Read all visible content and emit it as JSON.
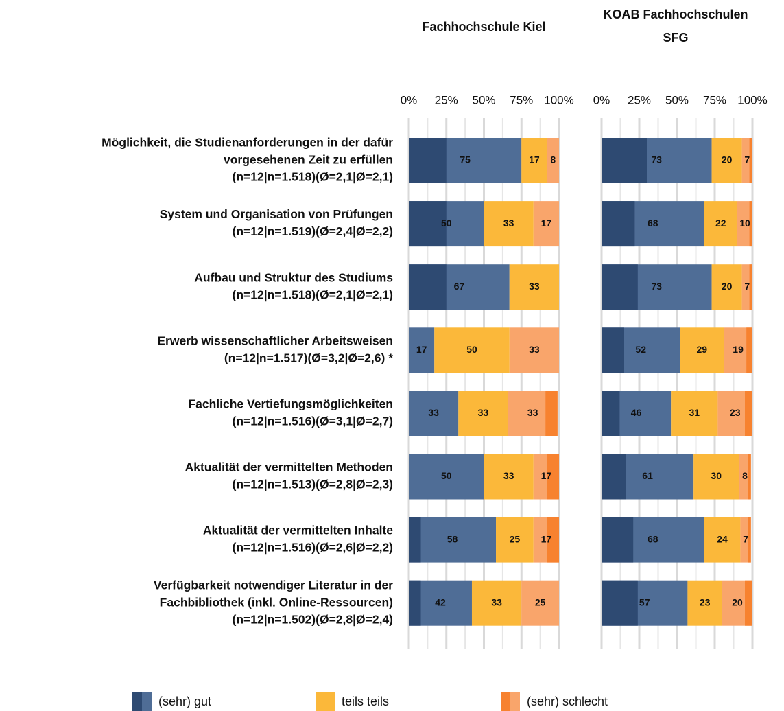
{
  "chart_data": {
    "type": "bar",
    "orientation": "horizontal",
    "stacked": true,
    "grid": true,
    "legend": "bottom",
    "categories": [
      [
        "Möglichkeit, die Studienanforderungen in der dafür",
        "vorgesehenen Zeit zu erfüllen",
        "(n=12|n=1.518)(Ø=2,1|Ø=2,1)"
      ],
      [
        "System und Organisation von Prüfungen",
        "(n=12|n=1.519)(Ø=2,4|Ø=2,2)"
      ],
      [
        "Aufbau und Struktur des Studiums",
        "(n=12|n=1.518)(Ø=2,1|Ø=2,1)"
      ],
      [
        "Erwerb wissenschaftlicher Arbeitsweisen",
        "(n=12|n=1.517)(Ø=3,2|Ø=2,6) *"
      ],
      [
        "Fachliche Vertiefungsmöglichkeiten",
        "(n=12|n=1.516)(Ø=3,1|Ø=2,7)"
      ],
      [
        "Aktualität der vermittelten Methoden",
        "(n=12|n=1.513)(Ø=2,8|Ø=2,3)"
      ],
      [
        "Aktualität der vermittelten Inhalte",
        "(n=12|n=1.516)(Ø=2,6|Ø=2,2)"
      ],
      [
        "Verfügbarkeit notwendiger Literatur in der",
        "Fachbibliothek (inkl. Online-Ressourcen)",
        "(n=12|n=1.502)(Ø=2,8|Ø=2,4)"
      ]
    ],
    "series": [
      {
        "name": "(sehr) gut",
        "color": "#4f6d96",
        "strong_color": "#2e4a72"
      },
      {
        "name": "teils teils",
        "color": "#fbb83a",
        "strong_color": null
      },
      {
        "name": "(sehr) schlecht",
        "color": "#f9a56b",
        "strong_color": "#f7822f"
      }
    ],
    "panels": [
      {
        "title": [
          "Fachhochschule Kiel"
        ],
        "values": [
          [
            75,
            50,
            67,
            17,
            33,
            50,
            58,
            42
          ],
          [
            17,
            33,
            33,
            50,
            33,
            33,
            25,
            33
          ],
          [
            8,
            17,
            null,
            33,
            33,
            17,
            17,
            25
          ]
        ],
        "strong_values": [
          [
            25,
            25,
            25,
            0,
            0,
            0,
            8,
            8
          ],
          null,
          [
            0,
            0,
            null,
            0,
            8,
            8,
            8,
            0
          ]
        ]
      },
      {
        "title": [
          "KOAB Fachhochschulen",
          "SFG"
        ],
        "values": [
          [
            73,
            68,
            73,
            52,
            46,
            61,
            68,
            57
          ],
          [
            20,
            22,
            20,
            29,
            31,
            30,
            24,
            23
          ],
          [
            7,
            10,
            7,
            19,
            23,
            8,
            7,
            20
          ]
        ],
        "strong_values": [
          [
            30,
            22,
            24,
            15,
            12,
            16,
            21,
            24
          ],
          null,
          [
            2,
            2,
            2,
            4,
            5,
            2,
            2,
            5
          ]
        ]
      }
    ],
    "xlim": [
      0,
      100
    ],
    "xticks": [
      {
        "value": 0,
        "label": "0%"
      },
      {
        "value": 25,
        "label": "25%"
      },
      {
        "value": 50,
        "label": "50%"
      },
      {
        "value": 75,
        "label": "75%"
      },
      {
        "value": 100,
        "label": "100%"
      }
    ],
    "xticks_minor": [
      12.5,
      37.5,
      62.5,
      87.5
    ]
  }
}
